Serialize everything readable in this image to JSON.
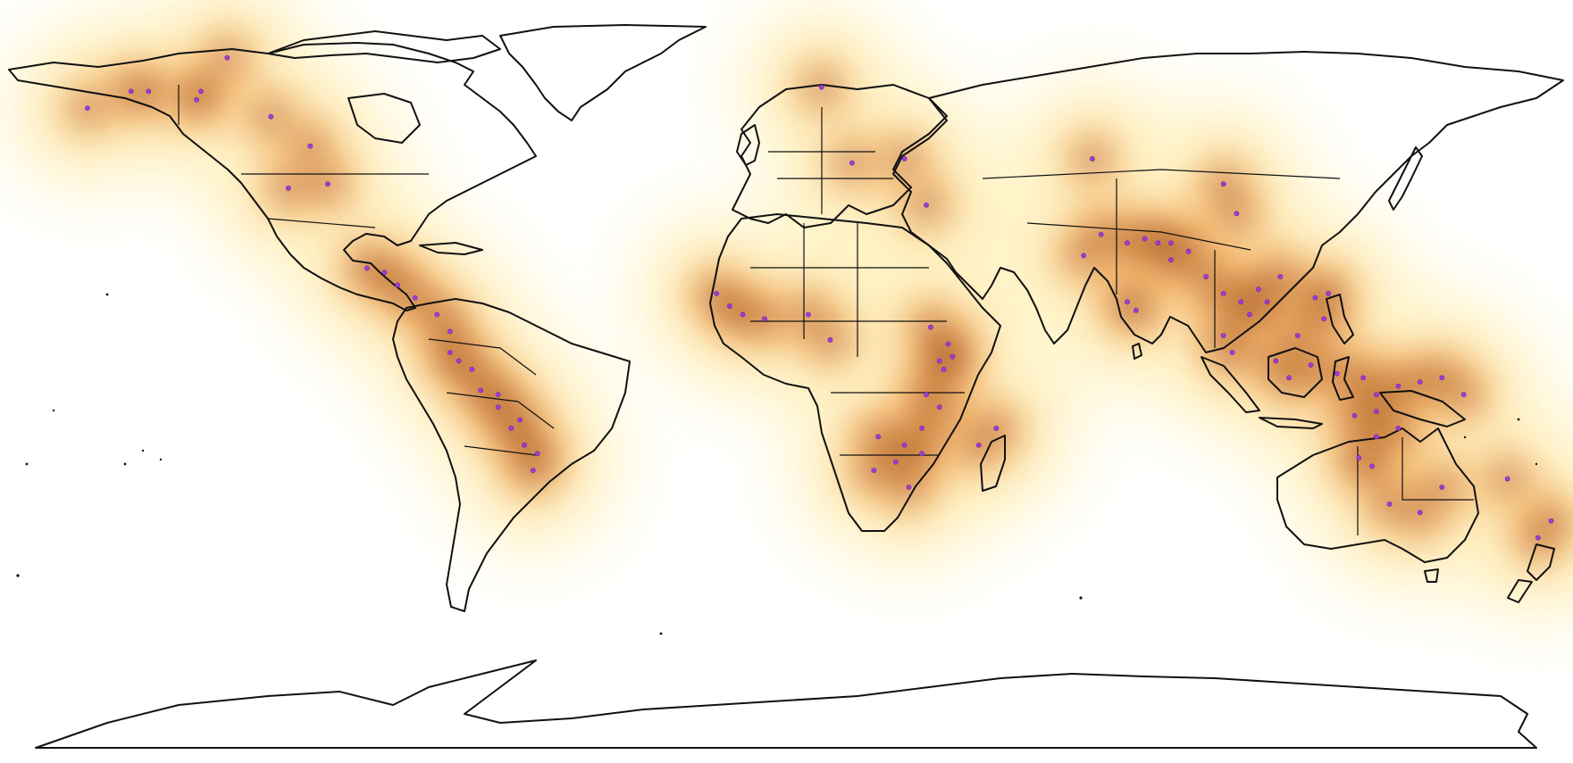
{
  "map": {
    "type": "world-density-map",
    "projection": "equirectangular",
    "colors": {
      "background": "#ffffff",
      "land_outline": "#111111",
      "density_low": "#fff3c4",
      "density_mid": "#f2a85a",
      "density_high": "#9a4a1c",
      "occurrence_point": "#9b3fd0"
    },
    "occurrences_lonlat": [
      [
        -150,
        62
      ],
      [
        -146,
        62
      ],
      [
        -135,
        60
      ],
      [
        -134,
        62
      ],
      [
        -128,
        70
      ],
      [
        -160,
        58
      ],
      [
        -118,
        56
      ],
      [
        -109,
        49
      ],
      [
        -105,
        40
      ],
      [
        -114,
        39
      ],
      [
        -96,
        20
      ],
      [
        -92,
        19
      ],
      [
        -89,
        16
      ],
      [
        -85,
        13
      ],
      [
        -80,
        9
      ],
      [
        -77,
        5
      ],
      [
        -77,
        0
      ],
      [
        -75,
        -2
      ],
      [
        -72,
        -4
      ],
      [
        -70,
        -9
      ],
      [
        -66,
        -13
      ],
      [
        -66,
        -10
      ],
      [
        -63,
        -18
      ],
      [
        -60,
        -22
      ],
      [
        -61,
        -16
      ],
      [
        -57,
        -24
      ],
      [
        -58,
        -28
      ],
      [
        -16,
        14
      ],
      [
        -13,
        11
      ],
      [
        -10,
        9
      ],
      [
        -5,
        8
      ],
      [
        5,
        9
      ],
      [
        10,
        3
      ],
      [
        8,
        63
      ],
      [
        27,
        46
      ],
      [
        15,
        45
      ],
      [
        32,
        35
      ],
      [
        33,
        6
      ],
      [
        35,
        -2
      ],
      [
        37,
        2
      ],
      [
        38,
        -1
      ],
      [
        36,
        -4
      ],
      [
        32,
        -10
      ],
      [
        35,
        -13
      ],
      [
        31,
        -18
      ],
      [
        27,
        -22
      ],
      [
        25,
        -26
      ],
      [
        21,
        -20
      ],
      [
        20,
        -28
      ],
      [
        28,
        -32
      ],
      [
        31,
        -24
      ],
      [
        48,
        -18
      ],
      [
        44,
        -22
      ],
      [
        68,
        23
      ],
      [
        72,
        28
      ],
      [
        78,
        26
      ],
      [
        82,
        27
      ],
      [
        85,
        26
      ],
      [
        88,
        26
      ],
      [
        92,
        24
      ],
      [
        78,
        12
      ],
      [
        80,
        10
      ],
      [
        88,
        22
      ],
      [
        70,
        46
      ],
      [
        103,
        33
      ],
      [
        100,
        40
      ],
      [
        96,
        18
      ],
      [
        100,
        14
      ],
      [
        104,
        12
      ],
      [
        106,
        9
      ],
      [
        108,
        15
      ],
      [
        110,
        12
      ],
      [
        113,
        18
      ],
      [
        121,
        13
      ],
      [
        123,
        8
      ],
      [
        124,
        14
      ],
      [
        100,
        4
      ],
      [
        102,
        0
      ],
      [
        112,
        -2
      ],
      [
        115,
        -6
      ],
      [
        120,
        -3
      ],
      [
        117,
        4
      ],
      [
        126,
        -5
      ],
      [
        132,
        -6
      ],
      [
        135,
        -10
      ],
      [
        140,
        -8
      ],
      [
        145,
        -7
      ],
      [
        150,
        -6
      ],
      [
        155,
        -10
      ],
      [
        130,
        -15
      ],
      [
        135,
        -14
      ],
      [
        140,
        -18
      ],
      [
        135,
        -20
      ],
      [
        131,
        -25
      ],
      [
        134,
        -27
      ],
      [
        138,
        -36
      ],
      [
        145,
        -38
      ],
      [
        150,
        -32
      ],
      [
        175,
        -40
      ],
      [
        172,
        -44
      ],
      [
        165,
        -30
      ]
    ]
  }
}
